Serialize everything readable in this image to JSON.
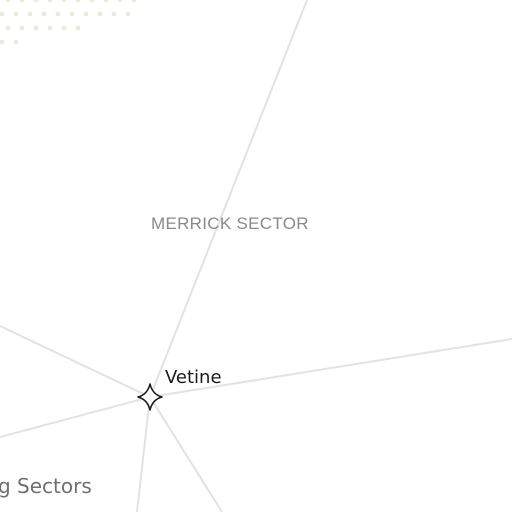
{
  "map": {
    "sector_name": "MERRICK SECTOR",
    "region_label": "g Sectors",
    "system": {
      "name": "Vetine",
      "marker_icon": "four-point-star-icon"
    },
    "colors": {
      "background": "#ffffff",
      "lane": "#e2e2e2",
      "marker_stroke": "#1a1a1a",
      "sector_text": "#8a8a8a",
      "region_text": "#707070",
      "dot_pattern": "#ebeadd"
    }
  }
}
